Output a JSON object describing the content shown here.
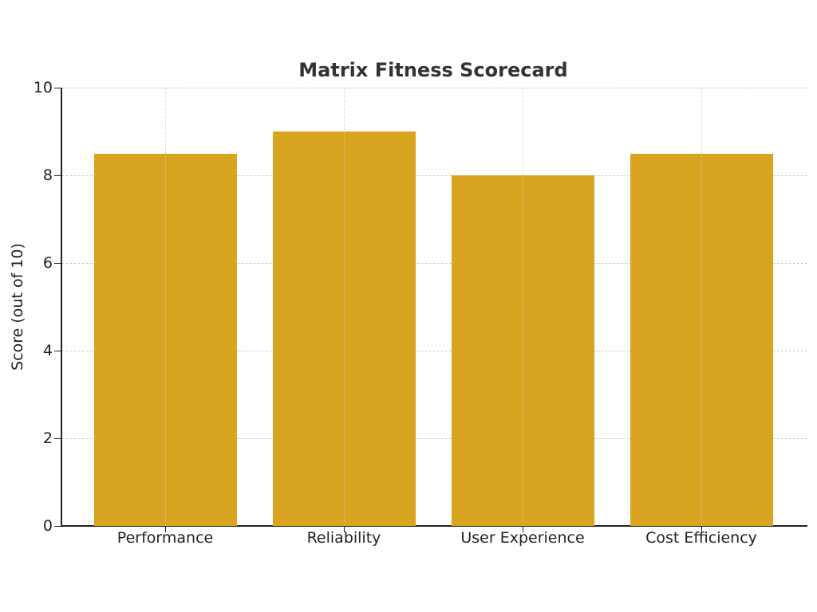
{
  "chart_data": {
    "type": "bar",
    "title": "Matrix Fitness Scorecard",
    "categories": [
      "Performance",
      "Reliability",
      "User Experience",
      "Cost Efficiency"
    ],
    "values": [
      8.5,
      9.0,
      8.0,
      8.5
    ],
    "xlabel": "",
    "ylabel": "Score (out of 10)",
    "ylim": [
      0,
      10
    ],
    "yticks": [
      "0",
      "2",
      "4",
      "6",
      "8",
      "10"
    ],
    "grid": true,
    "bar_color": "#d9a520",
    "legend": null
  }
}
